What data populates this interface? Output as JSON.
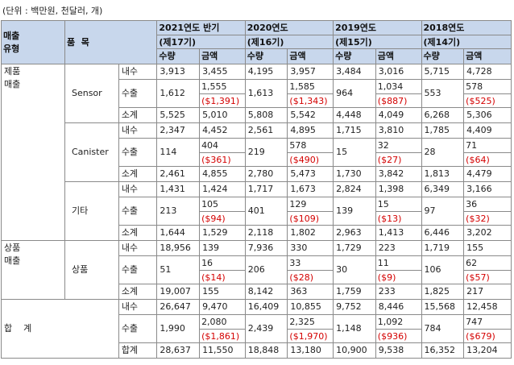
{
  "unit_note": "(단위 : 백만원, 천달러, 개)",
  "header": {
    "type_label": "매출\n유형",
    "item_label": "품  목",
    "periods": [
      {
        "line1": "2021연도 반기",
        "line2": "(제17기)"
      },
      {
        "line1": "2020연도",
        "line2": "(제16기)"
      },
      {
        "line1": "2019연도",
        "line2": "(제15기)"
      },
      {
        "line1": "2018연도",
        "line2": "(제14기)"
      }
    ],
    "qty_label": "수량",
    "amt_label": "금액"
  },
  "sections": [
    {
      "type": "제품\n매출",
      "groups": [
        {
          "item": "Sensor",
          "rows": [
            {
              "kind": "내수",
              "cells": [
                [
                  "3,913",
                  "3,455"
                ],
                [
                  "4,195",
                  "3,957"
                ],
                [
                  "3,484",
                  "3,016"
                ],
                [
                  "5,715",
                  "4,728"
                ]
              ]
            },
            {
              "kind": "수출",
              "cells": [
                [
                  "1,612",
                  [
                    "1,555",
                    "($1,391)"
                  ]
                ],
                [
                  "1,613",
                  [
                    "1,585",
                    "($1,343)"
                  ]
                ],
                [
                  "964",
                  [
                    "1,034",
                    "($887)"
                  ]
                ],
                [
                  "553",
                  [
                    "578",
                    "($525)"
                  ]
                ]
              ]
            },
            {
              "kind": "소계",
              "cells": [
                [
                  "5,525",
                  "5,010"
                ],
                [
                  "5,808",
                  "5,542"
                ],
                [
                  "4,448",
                  "4,049"
                ],
                [
                  "6,268",
                  "5,306"
                ]
              ]
            }
          ]
        },
        {
          "item": "Canister",
          "rows": [
            {
              "kind": "내수",
              "cells": [
                [
                  "2,347",
                  "4,452"
                ],
                [
                  "2,561",
                  "4,895"
                ],
                [
                  "1,715",
                  "3,810"
                ],
                [
                  "1,785",
                  "4,409"
                ]
              ]
            },
            {
              "kind": "수출",
              "cells": [
                [
                  "114",
                  [
                    "404",
                    "($361)"
                  ]
                ],
                [
                  "219",
                  [
                    "578",
                    "($490)"
                  ]
                ],
                [
                  "15",
                  [
                    "32",
                    "($27)"
                  ]
                ],
                [
                  "28",
                  [
                    "71",
                    "($64)"
                  ]
                ]
              ]
            },
            {
              "kind": "소계",
              "cells": [
                [
                  "2,461",
                  "4,855"
                ],
                [
                  "2,780",
                  "5,473"
                ],
                [
                  "1,730",
                  "3,842"
                ],
                [
                  "1,813",
                  "4,479"
                ]
              ]
            }
          ]
        },
        {
          "item": "기타",
          "rows": [
            {
              "kind": "내수",
              "cells": [
                [
                  "1,431",
                  "1,424"
                ],
                [
                  "1,717",
                  "1,673"
                ],
                [
                  "2,824",
                  "1,398"
                ],
                [
                  "6,349",
                  "3,166"
                ]
              ]
            },
            {
              "kind": "수출",
              "cells": [
                [
                  "213",
                  [
                    "105",
                    "($94)"
                  ]
                ],
                [
                  "401",
                  [
                    "129",
                    "($109)"
                  ]
                ],
                [
                  "139",
                  [
                    "15",
                    "($13)"
                  ]
                ],
                [
                  "97",
                  [
                    "36",
                    "($32)"
                  ]
                ]
              ]
            },
            {
              "kind": "소계",
              "cells": [
                [
                  "1,644",
                  "1,529"
                ],
                [
                  "2,118",
                  "1,802"
                ],
                [
                  "2,963",
                  "1,413"
                ],
                [
                  "6,446",
                  "3,202"
                ]
              ]
            }
          ]
        }
      ]
    },
    {
      "type": "상품\n매출",
      "groups": [
        {
          "item": "상품",
          "rows": [
            {
              "kind": "내수",
              "cells": [
                [
                  "18,956",
                  "139"
                ],
                [
                  "7,936",
                  "330"
                ],
                [
                  "1,729",
                  "223"
                ],
                [
                  "1,719",
                  "155"
                ]
              ]
            },
            {
              "kind": "수출",
              "cells": [
                [
                  "51",
                  [
                    "16",
                    "($14)"
                  ]
                ],
                [
                  "206",
                  [
                    "33",
                    "($28)"
                  ]
                ],
                [
                  "30",
                  [
                    "11",
                    "($9)"
                  ]
                ],
                [
                  "106",
                  [
                    "62",
                    "($57)"
                  ]
                ]
              ]
            },
            {
              "kind": "소계",
              "cells": [
                [
                  "19,007",
                  "155"
                ],
                [
                  "8,142",
                  "363"
                ],
                [
                  "1,759",
                  "233"
                ],
                [
                  "1,825",
                  "217"
                ]
              ]
            }
          ]
        }
      ]
    },
    {
      "type": "합    계",
      "total": true,
      "groups": [
        {
          "item": "",
          "rows": [
            {
              "kind": "내수",
              "cells": [
                [
                  "26,647",
                  "9,470"
                ],
                [
                  "16,409",
                  "10,855"
                ],
                [
                  "9,752",
                  "8,446"
                ],
                [
                  "15,568",
                  "12,458"
                ]
              ]
            },
            {
              "kind": "수출",
              "cells": [
                [
                  "1,990",
                  [
                    "2,080",
                    "($1,861)"
                  ]
                ],
                [
                  "2,439",
                  [
                    "2,325",
                    "($1,970)"
                  ]
                ],
                [
                  "1,148",
                  [
                    "1,092",
                    "($936)"
                  ]
                ],
                [
                  "784",
                  [
                    "747",
                    "($679)"
                  ]
                ]
              ]
            },
            {
              "kind": "합계",
              "cells": [
                [
                  "28,637",
                  "11,550"
                ],
                [
                  "18,848",
                  "13,180"
                ],
                [
                  "10,900",
                  "9,538"
                ],
                [
                  "16,352",
                  "13,204"
                ]
              ]
            }
          ]
        }
      ]
    }
  ]
}
